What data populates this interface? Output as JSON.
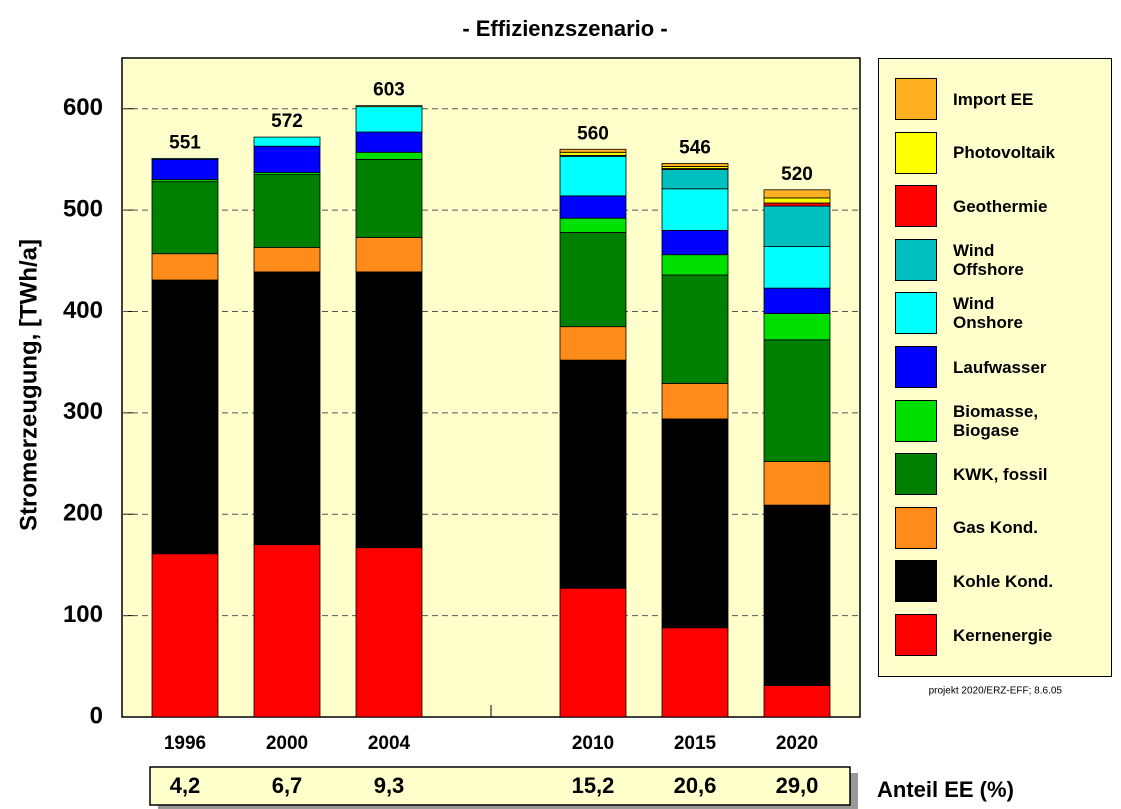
{
  "chart_data": {
    "type": "stacked_bar",
    "title": "- Effizienzszenario -",
    "y_label": "Stromerzeugung, [TWh/a]",
    "categories": [
      "1996",
      "2000",
      "2004",
      null,
      "2010",
      "2015",
      "2020"
    ],
    "ylim": [
      0,
      650
    ],
    "yticks": [
      0,
      100,
      200,
      300,
      400,
      500,
      600
    ],
    "grid": true,
    "series": [
      {
        "name": "Kernenergie",
        "color": "#ff0000",
        "values": [
          161,
          170,
          167,
          null,
          127,
          88,
          31
        ]
      },
      {
        "name": "Kohle Kond.",
        "color": "#000000",
        "values": [
          270,
          269,
          272,
          null,
          225,
          206,
          178
        ]
      },
      {
        "name": "Gas Kond.",
        "color": "#ff8c1a",
        "values": [
          26,
          24,
          34,
          null,
          33,
          35,
          43
        ]
      },
      {
        "name": "KWK, fossil",
        "color": "#008000",
        "values": [
          71,
          72,
          77,
          null,
          93,
          107,
          120
        ]
      },
      {
        "name": "Biomasse, Biogase",
        "color": "#00e000",
        "values": [
          2,
          2,
          7,
          null,
          14,
          20,
          26
        ]
      },
      {
        "name": "Laufwasser",
        "color": "#0000ff",
        "values": [
          20,
          26,
          20,
          null,
          22,
          24,
          25
        ]
      },
      {
        "name": "Wind Onshore",
        "color": "#00ffff",
        "values": [
          1,
          9,
          25,
          null,
          39,
          41,
          41
        ]
      },
      {
        "name": "Wind Offshore",
        "color": "#00bfbf",
        "values": [
          0,
          0,
          0,
          null,
          1,
          19,
          40
        ]
      },
      {
        "name": "Geothermie",
        "color": "#ff0000",
        "values": [
          0,
          0,
          0,
          null,
          0,
          1,
          3
        ]
      },
      {
        "name": "Photovoltaik",
        "color": "#ffff00",
        "values": [
          0,
          0,
          1,
          null,
          3,
          2,
          5
        ]
      },
      {
        "name": "Import EE",
        "color": "#ffb020",
        "values": [
          0,
          0,
          0,
          null,
          3,
          3,
          8
        ]
      }
    ],
    "totals": [
      551,
      572,
      603,
      null,
      560,
      546,
      520
    ],
    "ee_share": {
      "label": "Anteil EE (%)",
      "values": [
        4.2,
        6.7,
        9.3,
        null,
        15.2,
        20.6,
        29.0
      ],
      "value_labels": [
        "4,2",
        "6,7",
        "9,3",
        null,
        "15,2",
        "20,6",
        "29,0"
      ]
    },
    "note": "projekt 2020/ERZ-EFF; 8.6.05"
  }
}
